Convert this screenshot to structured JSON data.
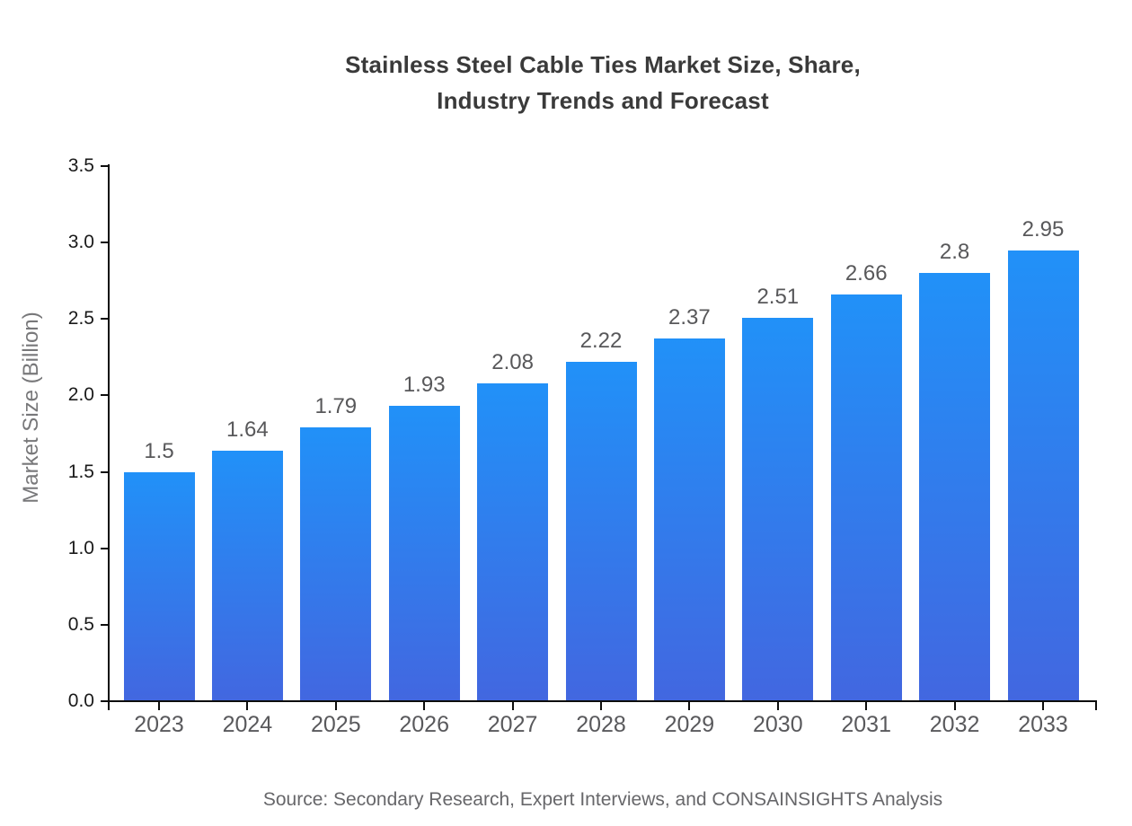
{
  "title_line1": "Stainless Steel Cable Ties Market Size, Share,",
  "title_line2": "Industry Trends and Forecast",
  "source_text": "Source: Secondary Research, Expert Interviews, and CONSAINSIGHTS Analysis",
  "chart_data": {
    "type": "bar",
    "title": "Stainless Steel Cable Ties Market Size, Share, Industry Trends and Forecast",
    "xlabel": "",
    "ylabel": "Market Size (Billion)",
    "categories": [
      "2023",
      "2024",
      "2025",
      "2026",
      "2027",
      "2028",
      "2029",
      "2030",
      "2031",
      "2032",
      "2033"
    ],
    "values": [
      1.5,
      1.64,
      1.79,
      1.93,
      2.08,
      2.22,
      2.37,
      2.51,
      2.66,
      2.8,
      2.95
    ],
    "data_labels": [
      "1.5",
      "1.64",
      "1.79",
      "1.93",
      "2.08",
      "2.22",
      "2.37",
      "2.51",
      "2.66",
      "2.8",
      "2.95"
    ],
    "ylim": [
      0,
      3.5
    ],
    "ytick_labels": [
      "0.0",
      "0.5",
      "1.0",
      "1.5",
      "2.0",
      "2.5",
      "3.0",
      "3.5"
    ],
    "grid": false,
    "legend_position": "none",
    "bar_gradient_top": "#2191f8",
    "bar_gradient_bottom": "#4267e0"
  },
  "colors": {
    "background": "#ffffff",
    "title": "#3a3a3a",
    "axis": "#0d0d0d",
    "ytick_label": "#1a1a1a",
    "xtick_label": "#59595c",
    "value_label": "#58585a",
    "ylabel": "#78787a",
    "source": "#67676a"
  }
}
